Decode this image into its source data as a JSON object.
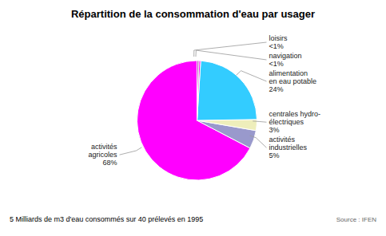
{
  "chart_data": {
    "type": "pie",
    "title": "Répartition de la consommation d'eau par usager",
    "categories": [
      "activités\nagricoles",
      "activités\nindustrielles",
      "centrales hydro-\nélectriques",
      "alimentation\nen eau potable",
      "navigation",
      "loisirs"
    ],
    "values": [
      68,
      5,
      3,
      24,
      0.5,
      0.5
    ],
    "value_labels": [
      "68%",
      "5%",
      "3%",
      "24%",
      "<1%",
      "<1%"
    ],
    "colors": [
      "#FF00FF",
      "#9999CC",
      "#EEEEBB",
      "#33CCFF",
      "#FF00FF",
      "#BB44BB"
    ],
    "data_labels": true,
    "annotations": [
      "5 Milliards de m3 d'eau consommés sur 40 prélevés en 1995",
      "Source : IFEN"
    ]
  }
}
